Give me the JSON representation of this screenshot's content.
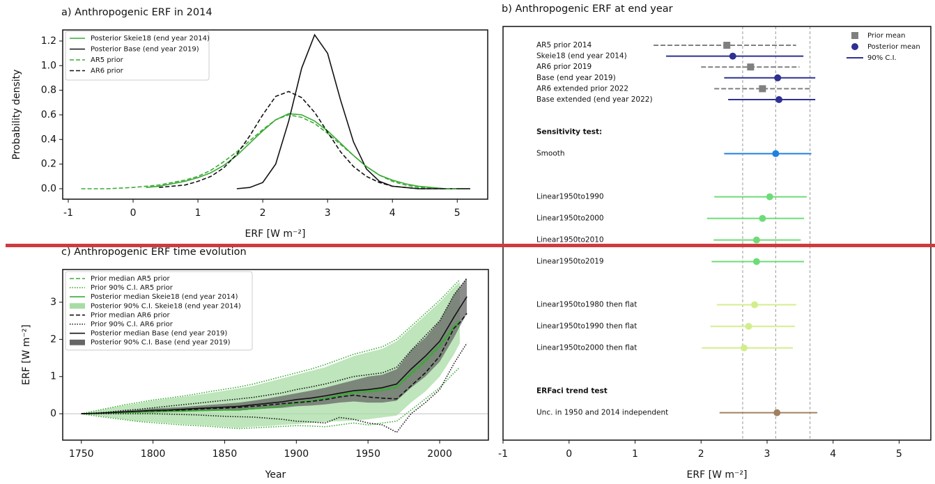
{
  "chart_data": [
    {
      "type": "line",
      "title": "a) Anthropogenic ERF in 2014",
      "xlabel": "ERF [W m⁻²]",
      "ylabel": "Probability density",
      "xlim": [
        -1.086,
        5.47
      ],
      "ylim": [
        -0.085,
        1.29
      ],
      "xticks": [
        -1,
        0,
        1,
        2,
        3,
        4,
        5
      ],
      "yticks": [
        {
          "value": 0,
          "label": "0.0"
        },
        {
          "value": 0.2,
          "label": "0.2"
        },
        {
          "value": 0.4,
          "label": "0.4"
        },
        {
          "value": 0.6,
          "label": "0.6"
        },
        {
          "value": 0.8,
          "label": "0.8"
        },
        {
          "value": 1,
          "label": "1.0"
        },
        {
          "value": 1.2,
          "label": "1.2"
        }
      ],
      "legend": "upper left",
      "x": [
        -0.8,
        -0.6,
        -0.4,
        -0.2,
        0,
        0.2,
        0.4,
        0.6,
        0.8,
        1,
        1.2,
        1.4,
        1.6,
        1.8,
        2,
        2.2,
        2.4,
        2.6,
        2.8,
        3,
        3.2,
        3.4,
        3.6,
        3.8,
        4,
        4.2,
        4.4,
        4.6,
        4.8,
        5,
        5.2
      ],
      "series": [
        {
          "name": "Posterior Skeie18 (end year 2014)",
          "color": "#3aaa35",
          "style": "solid",
          "values": [
            null,
            null,
            null,
            null,
            null,
            0.01,
            0.02,
            0.04,
            0.06,
            0.09,
            0.13,
            0.19,
            0.27,
            0.37,
            0.47,
            0.56,
            0.61,
            0.6,
            0.55,
            0.47,
            0.37,
            0.27,
            0.18,
            0.11,
            0.07,
            0.04,
            0.02,
            0.01,
            0,
            0,
            0
          ]
        },
        {
          "name": "Posterior Base (end year 2019)",
          "color": "#111111",
          "style": "solid",
          "values": [
            null,
            null,
            null,
            null,
            null,
            null,
            null,
            null,
            null,
            null,
            null,
            null,
            0,
            0.01,
            0.05,
            0.2,
            0.55,
            0.98,
            1.25,
            1.1,
            0.72,
            0.38,
            0.16,
            0.06,
            0.02,
            0.01,
            0,
            0,
            0,
            0,
            0
          ]
        },
        {
          "name": "AR5 prior",
          "color": "#3aaa35",
          "style": "dashed",
          "values": [
            0,
            0,
            0,
            0.005,
            0.01,
            0.02,
            0.03,
            0.05,
            0.07,
            0.1,
            0.15,
            0.22,
            0.3,
            0.39,
            0.48,
            0.56,
            0.6,
            0.58,
            0.53,
            0.45,
            0.36,
            0.27,
            0.18,
            0.11,
            0.06,
            0.03,
            0.01,
            0.01,
            0,
            0,
            null
          ]
        },
        {
          "name": "AR6 prior",
          "color": "#111111",
          "style": "dashed",
          "values": [
            null,
            null,
            null,
            null,
            null,
            null,
            0.01,
            0.02,
            0.03,
            0.06,
            0.1,
            0.17,
            0.28,
            0.43,
            0.6,
            0.75,
            0.79,
            0.74,
            0.62,
            0.46,
            0.3,
            0.18,
            0.1,
            0.05,
            0.02,
            0.01,
            0,
            0,
            0,
            null,
            null
          ]
        }
      ]
    },
    {
      "type": "forest",
      "title": "b) Anthropogenic ERF at end year",
      "xlabel": "ERF [W m⁻²]",
      "xlim": [
        -1,
        5.48
      ],
      "xticks": [
        -1,
        0,
        1,
        2,
        3,
        4,
        5
      ],
      "reference_lines": [
        2.63,
        3.13,
        3.65
      ],
      "legend": "upper right",
      "legend_entries": [
        {
          "name": "Prior mean",
          "color": "#808080",
          "marker": "square"
        },
        {
          "name": "Posterior mean",
          "color": "#2e3192",
          "marker": "circle"
        },
        {
          "name": "90% C.I.",
          "color": "#2e3192",
          "marker": "line"
        }
      ],
      "groups": [
        {
          "rows": [
            {
              "label": "AR5 prior 2014",
              "kind": "prior",
              "color": "#808080",
              "mean": 2.39,
              "lower": 1.28,
              "upper": 3.44
            },
            {
              "label": "Skeie18 (end year 2014)",
              "kind": "posterior",
              "color": "#2e3192",
              "mean": 2.48,
              "lower": 1.47,
              "upper": 3.55
            },
            {
              "label": "AR6 prior 2019",
              "kind": "prior",
              "color": "#808080",
              "mean": 2.75,
              "lower": 2.0,
              "upper": 3.49
            },
            {
              "label": "Base (end year 2019)",
              "kind": "posterior",
              "color": "#2e3192",
              "mean": 3.16,
              "lower": 2.35,
              "upper": 3.73
            },
            {
              "label": "AR6 extended prior 2022",
              "kind": "prior",
              "color": "#808080",
              "mean": 2.93,
              "lower": 2.2,
              "upper": 3.66
            },
            {
              "label": "Base extended (end year 2022)",
              "kind": "posterior",
              "color": "#2e3192",
              "mean": 3.18,
              "lower": 2.41,
              "upper": 3.73
            }
          ]
        },
        {
          "title": "Sensitivity test:",
          "rows": [
            {
              "label": "Smooth",
              "kind": "posterior",
              "color": "#1f80e0",
              "mean": 3.13,
              "lower": 2.35,
              "upper": 3.67
            }
          ]
        },
        {
          "rows": [
            {
              "label": "Linear1950to1990",
              "kind": "posterior",
              "color": "#6ddc78",
              "mean": 3.04,
              "lower": 2.2,
              "upper": 3.6
            },
            {
              "label": "Linear1950to2000",
              "kind": "posterior",
              "color": "#6ddc78",
              "mean": 2.93,
              "lower": 2.09,
              "upper": 3.56
            },
            {
              "label": "Linear1950to2010",
              "kind": "posterior",
              "color": "#6ddc78",
              "mean": 2.84,
              "lower": 2.19,
              "upper": 3.51
            },
            {
              "label": "Linear1950to2019",
              "kind": "posterior",
              "color": "#6ddc78",
              "mean": 2.84,
              "lower": 2.16,
              "upper": 3.56
            }
          ]
        },
        {
          "rows": [
            {
              "label": "Linear1950to1980 then flat",
              "kind": "posterior",
              "color": "#d2ee8c",
              "mean": 2.81,
              "lower": 2.24,
              "upper": 3.44
            },
            {
              "label": "Linear1950to1990 then flat",
              "kind": "posterior",
              "color": "#d2ee8c",
              "mean": 2.72,
              "lower": 2.14,
              "upper": 3.42
            },
            {
              "label": "Linear1950to2000 then flat",
              "kind": "posterior",
              "color": "#d2ee8c",
              "mean": 2.65,
              "lower": 2.01,
              "upper": 3.39
            }
          ]
        },
        {
          "title": "ERFaci trend test",
          "rows": [
            {
              "label": "Unc. in 1950 and 2014 independent",
              "kind": "posterior",
              "color": "#a08060",
              "mean": 3.15,
              "lower": 2.28,
              "upper": 3.76
            }
          ]
        }
      ]
    },
    {
      "type": "timeseries",
      "title": "c) Anthropogenic ERF time evolution",
      "xlabel": "Year",
      "ylabel": "ERF [W m⁻²]",
      "xlim": [
        1737,
        2034
      ],
      "ylim": [
        -0.71,
        3.88
      ],
      "xticks": [
        1750,
        1800,
        1850,
        1900,
        1950,
        2000
      ],
      "yticks": [
        0,
        1,
        2,
        3
      ],
      "hline": 0,
      "legend": "upper left",
      "x": [
        1750,
        1760,
        1770,
        1780,
        1790,
        1800,
        1810,
        1820,
        1830,
        1840,
        1850,
        1860,
        1870,
        1880,
        1890,
        1900,
        1910,
        1920,
        1930,
        1940,
        1950,
        1960,
        1970,
        1980,
        1990,
        2000,
        2010,
        2014,
        2019
      ],
      "series": [
        {
          "name": "Prior median AR5 prior",
          "color": "#3aaa35",
          "style": "dashed",
          "values": [
            0,
            0.01,
            0.02,
            0.03,
            0.04,
            0.05,
            0.06,
            0.07,
            0.08,
            0.09,
            0.1,
            0.1,
            0.13,
            0.16,
            0.2,
            0.28,
            0.33,
            0.4,
            0.48,
            0.55,
            0.58,
            0.62,
            0.7,
            1.05,
            1.4,
            1.8,
            2.3,
            2.45,
            null
          ]
        },
        {
          "name": "Prior 90% C.I. AR5 prior",
          "color": "#3aaa35",
          "style": "dotted",
          "lower": [
            0,
            -0.06,
            -0.11,
            -0.16,
            -0.21,
            -0.24,
            -0.27,
            -0.3,
            -0.32,
            -0.34,
            -0.37,
            -0.4,
            -0.38,
            -0.36,
            -0.34,
            -0.32,
            -0.33,
            -0.35,
            -0.3,
            -0.25,
            -0.3,
            -0.25,
            -0.2,
            0.1,
            0.4,
            0.7,
            1.1,
            1.25,
            null
          ],
          "upper": [
            0,
            0.08,
            0.16,
            0.24,
            0.3,
            0.37,
            0.42,
            0.47,
            0.53,
            0.6,
            0.66,
            0.72,
            0.8,
            0.9,
            1.0,
            1.1,
            1.2,
            1.32,
            1.46,
            1.6,
            1.7,
            1.8,
            2.0,
            2.35,
            2.7,
            3.05,
            3.45,
            3.6,
            null
          ]
        },
        {
          "name": "Posterior median Skeie18 (end year 2014)",
          "color": "#3aaa35",
          "style": "solid",
          "values": [
            0,
            0.01,
            0.02,
            0.03,
            0.04,
            0.05,
            0.06,
            0.07,
            0.08,
            0.09,
            0.1,
            0.1,
            0.14,
            0.17,
            0.2,
            0.3,
            0.35,
            0.42,
            0.5,
            0.58,
            0.6,
            0.65,
            0.72,
            1.1,
            1.45,
            1.85,
            2.35,
            2.5,
            null
          ]
        },
        {
          "name": "Posterior 90% C.I. Skeie18 (end year 2014)",
          "color": "#a8dca4",
          "style": "band",
          "lower": [
            0,
            -0.05,
            -0.1,
            -0.15,
            -0.2,
            -0.22,
            -0.25,
            -0.28,
            -0.3,
            -0.32,
            -0.35,
            -0.38,
            -0.35,
            -0.33,
            -0.3,
            -0.28,
            -0.25,
            -0.22,
            -0.2,
            -0.18,
            -0.15,
            -0.1,
            -0.05,
            0.3,
            0.6,
            1.0,
            1.6,
            1.9,
            null
          ],
          "upper": [
            0,
            0.07,
            0.15,
            0.22,
            0.28,
            0.35,
            0.4,
            0.45,
            0.5,
            0.56,
            0.62,
            0.68,
            0.75,
            0.85,
            0.95,
            1.05,
            1.15,
            1.25,
            1.4,
            1.55,
            1.65,
            1.75,
            1.95,
            2.3,
            2.65,
            3.0,
            3.4,
            3.55,
            null
          ]
        },
        {
          "name": "Prior median AR6 prior",
          "color": "#111111",
          "style": "dashed",
          "values": [
            0,
            0.01,
            0.03,
            0.05,
            0.07,
            0.08,
            0.09,
            0.1,
            0.12,
            0.14,
            0.15,
            0.17,
            0.2,
            0.23,
            0.27,
            0.3,
            0.33,
            0.38,
            0.45,
            0.5,
            0.45,
            0.42,
            0.4,
            0.75,
            1.1,
            1.55,
            2.3,
            2.45,
            2.7
          ]
        },
        {
          "name": "Prior 90% C.I. AR6 prior",
          "color": "#111111",
          "style": "dotted",
          "lower": [
            0,
            0,
            0,
            0,
            0,
            0,
            -0.01,
            -0.02,
            -0.03,
            -0.05,
            -0.07,
            -0.08,
            -0.09,
            -0.12,
            -0.15,
            -0.2,
            -0.22,
            -0.25,
            -0.1,
            -0.15,
            -0.25,
            -0.3,
            -0.5,
            0,
            0.3,
            0.65,
            1.35,
            1.6,
            1.9
          ],
          "upper": [
            0,
            0.02,
            0.05,
            0.09,
            0.12,
            0.16,
            0.2,
            0.24,
            0.28,
            0.32,
            0.36,
            0.4,
            0.44,
            0.5,
            0.56,
            0.65,
            0.72,
            0.8,
            0.9,
            1.0,
            1.05,
            1.1,
            1.25,
            1.7,
            2.1,
            2.5,
            3.2,
            3.4,
            3.65
          ]
        },
        {
          "name": "Posterior median Base (end year 2019)",
          "color": "#111111",
          "style": "solid",
          "values": [
            0,
            0.01,
            0.03,
            0.05,
            0.07,
            0.09,
            0.1,
            0.12,
            0.14,
            0.16,
            0.18,
            0.2,
            0.24,
            0.28,
            0.32,
            0.38,
            0.42,
            0.48,
            0.55,
            0.62,
            0.65,
            0.7,
            0.8,
            1.2,
            1.55,
            1.95,
            2.6,
            2.85,
            3.15
          ]
        },
        {
          "name": "Posterior 90% C.I. Base (end year 2019)",
          "color": "#666666",
          "style": "band",
          "lower": [
            0,
            0,
            0.01,
            0.02,
            0.03,
            0.04,
            0.05,
            0.06,
            0.07,
            0.08,
            0.09,
            0.1,
            0.12,
            0.14,
            0.16,
            0.2,
            0.22,
            0.25,
            0.3,
            0.33,
            0.3,
            0.3,
            0.35,
            0.7,
            1.0,
            1.4,
            2.05,
            2.35,
            2.7
          ],
          "upper": [
            0,
            0.02,
            0.05,
            0.08,
            0.11,
            0.14,
            0.16,
            0.18,
            0.21,
            0.24,
            0.27,
            0.3,
            0.35,
            0.41,
            0.48,
            0.55,
            0.62,
            0.7,
            0.8,
            0.9,
            1.0,
            1.05,
            1.2,
            1.7,
            2.05,
            2.5,
            3.2,
            3.4,
            3.65
          ]
        }
      ]
    }
  ]
}
